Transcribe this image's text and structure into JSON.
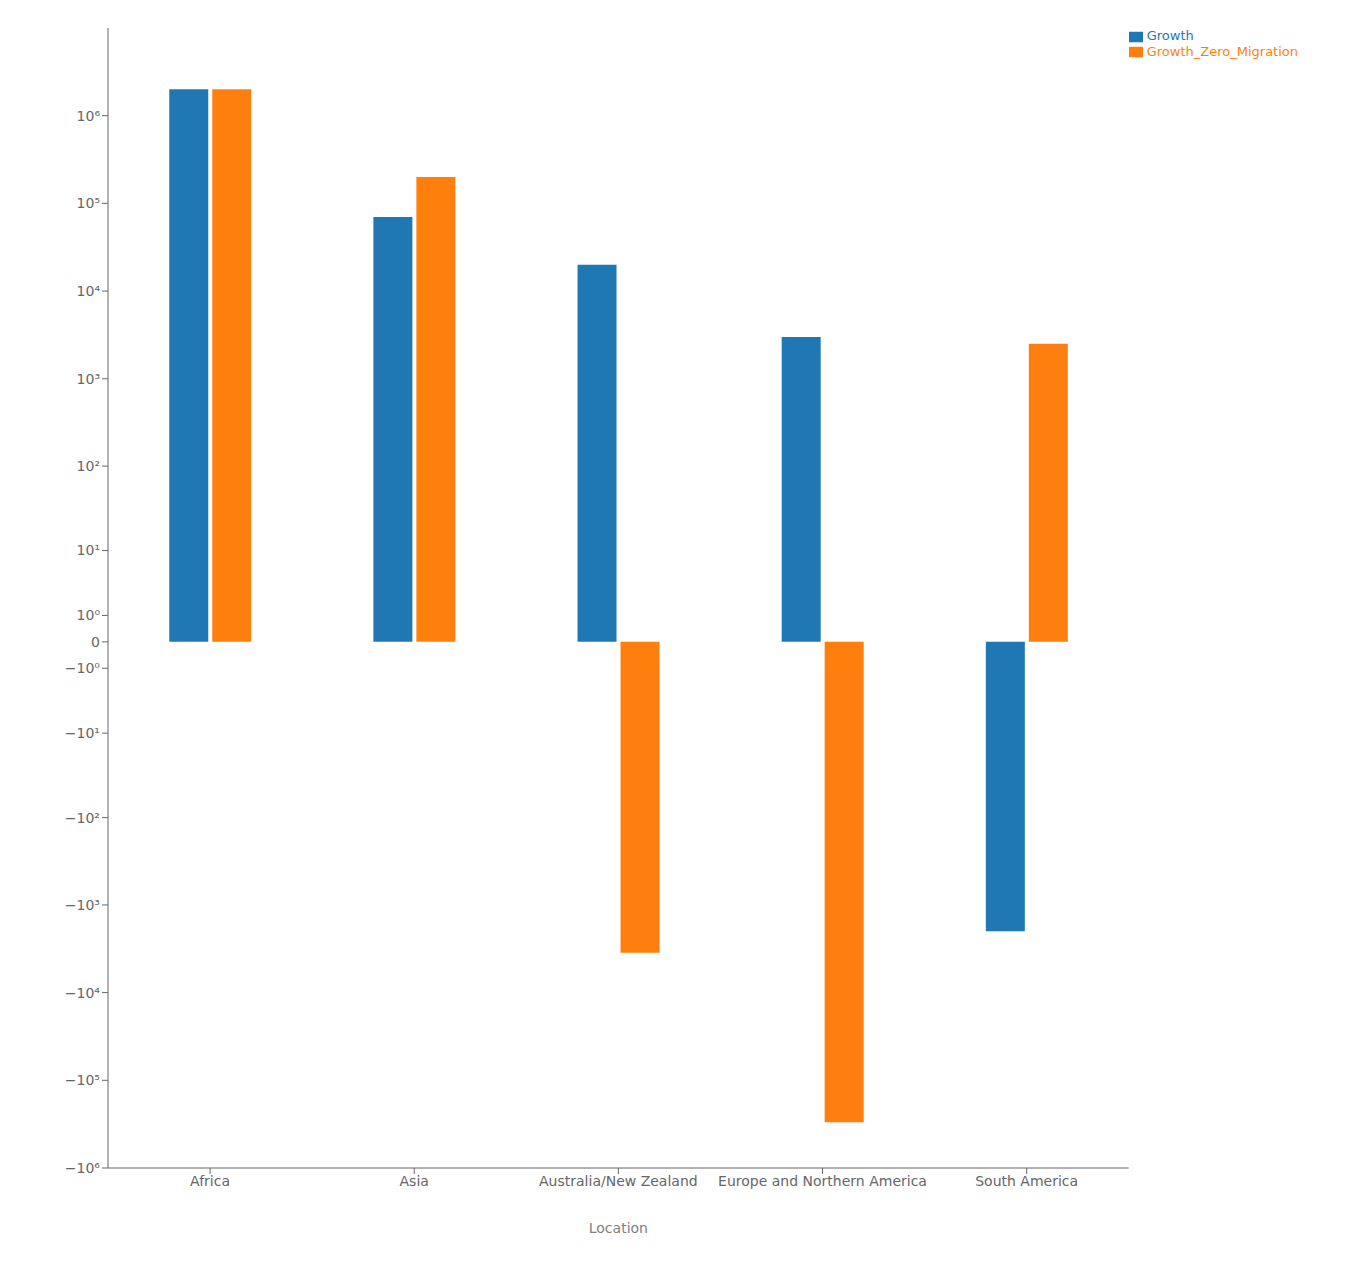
{
  "chart_data": {
    "type": "bar",
    "xlabel": "Location",
    "categories": [
      "Africa",
      "Asia",
      "Australia/New Zealand",
      "Europe and Northern America",
      "South America"
    ],
    "series": [
      {
        "name": "Growth",
        "color": "#1f77b4",
        "values": [
          2000000,
          70000,
          20000,
          3000,
          -2000
        ]
      },
      {
        "name": "Growth_Zero_Migration",
        "color": "#ff7f0e",
        "values": [
          2000000,
          200000,
          -3500,
          -300000,
          2500
        ]
      }
    ],
    "log": "y",
    "ylim": [
      -1000000,
      10000000
    ],
    "yticks": [
      {
        "value": -1000000,
        "label": "−10⁶"
      },
      {
        "value": -100000,
        "label": "−10⁵"
      },
      {
        "value": -10000,
        "label": "−10⁴"
      },
      {
        "value": -1000,
        "label": "−10³"
      },
      {
        "value": -100,
        "label": "−10²"
      },
      {
        "value": -10,
        "label": "−10¹"
      },
      {
        "value": -1,
        "label": "−10⁰"
      },
      0,
      {
        "value": 1,
        "label": "10⁰"
      },
      {
        "value": 10,
        "label": "10¹"
      },
      {
        "value": 100,
        "label": "10²"
      },
      {
        "value": 1000,
        "label": "10³"
      },
      {
        "value": 10000,
        "label": "10⁴"
      },
      {
        "value": 100000,
        "label": "10⁵"
      },
      {
        "value": 1000000,
        "label": "10⁶"
      }
    ],
    "grid": false,
    "legend": "upper right"
  }
}
